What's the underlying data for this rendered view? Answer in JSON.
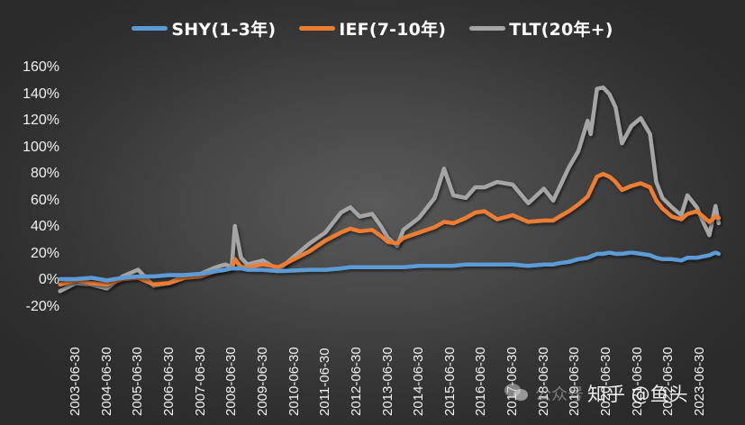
{
  "chart_data": {
    "type": "line",
    "title": "",
    "xlabel": "",
    "ylabel": "",
    "ylim": [
      -0.2,
      1.6
    ],
    "yticks": [
      "160%",
      "140%",
      "120%",
      "100%",
      "80%",
      "60%",
      "40%",
      "20%",
      "0%",
      "-20%"
    ],
    "ytick_values": [
      1.6,
      1.4,
      1.2,
      1.0,
      0.8,
      0.6,
      0.4,
      0.2,
      0.0,
      -0.2
    ],
    "xticks": [
      "2003-06-30",
      "2004-06-30",
      "2005-06-30",
      "2006-06-30",
      "2007-06-30",
      "2008-06-30",
      "2009-06-30",
      "2010-06-30",
      "2011-06-30",
      "2012-06-30",
      "2013-06-30",
      "2014-06-30",
      "2015-06-30",
      "2016-06-30",
      "2017-06-30",
      "2018-06-30",
      "2019-06-30",
      "2020-06-30",
      "2021-06-30",
      "2022-06-30",
      "2023-06-30"
    ],
    "legend_position": "top",
    "grid": false,
    "x": [
      2003.0,
      2003.5,
      2004.0,
      2004.5,
      2005.0,
      2005.5,
      2006.0,
      2006.5,
      2007.0,
      2007.5,
      2008.0,
      2008.3,
      2008.5,
      2008.6,
      2008.8,
      2009.0,
      2009.5,
      2010.0,
      2011.0,
      2011.5,
      2012.0,
      2012.3,
      2012.6,
      2013.0,
      2013.3,
      2013.5,
      2013.8,
      2014.0,
      2014.5,
      2015.0,
      2015.3,
      2015.6,
      2016.0,
      2016.3,
      2016.6,
      2017.0,
      2017.5,
      2018.0,
      2018.5,
      2018.8,
      2019.0,
      2019.3,
      2019.6,
      2019.9,
      2020.0,
      2020.2,
      2020.4,
      2020.6,
      2020.8,
      2021.0,
      2021.3,
      2021.6,
      2021.9,
      2022.1,
      2022.3,
      2022.6,
      2022.9,
      2023.1,
      2023.4,
      2023.6,
      2023.8,
      2024.0,
      2024.1
    ],
    "series": [
      {
        "name": "SHY(1-3年)",
        "color": "#5b9bd5",
        "values": [
          0.01,
          0.01,
          0.02,
          0.0,
          0.02,
          0.03,
          0.03,
          0.04,
          0.04,
          0.05,
          0.07,
          0.08,
          0.09,
          0.09,
          0.09,
          0.08,
          0.08,
          0.07,
          0.08,
          0.08,
          0.09,
          0.1,
          0.1,
          0.1,
          0.1,
          0.1,
          0.1,
          0.1,
          0.11,
          0.11,
          0.11,
          0.11,
          0.12,
          0.12,
          0.12,
          0.12,
          0.12,
          0.11,
          0.12,
          0.12,
          0.13,
          0.14,
          0.16,
          0.17,
          0.18,
          0.2,
          0.2,
          0.21,
          0.2,
          0.2,
          0.21,
          0.2,
          0.19,
          0.17,
          0.16,
          0.16,
          0.15,
          0.17,
          0.17,
          0.18,
          0.19,
          0.21,
          0.2
        ]
      },
      {
        "name": "IEF(7-10年)",
        "color": "#ed7d31",
        "values": [
          -0.03,
          0.0,
          -0.02,
          -0.03,
          0.01,
          0.02,
          -0.03,
          -0.02,
          0.02,
          0.03,
          0.07,
          0.08,
          0.09,
          0.16,
          0.1,
          0.1,
          0.12,
          0.1,
          0.22,
          0.3,
          0.36,
          0.39,
          0.37,
          0.38,
          0.33,
          0.29,
          0.28,
          0.32,
          0.36,
          0.4,
          0.44,
          0.43,
          0.47,
          0.51,
          0.52,
          0.46,
          0.49,
          0.44,
          0.45,
          0.45,
          0.48,
          0.52,
          0.57,
          0.63,
          0.68,
          0.78,
          0.8,
          0.78,
          0.74,
          0.68,
          0.71,
          0.73,
          0.7,
          0.6,
          0.54,
          0.48,
          0.46,
          0.5,
          0.52,
          0.48,
          0.44,
          0.48,
          0.47
        ]
      },
      {
        "name": "TLT(20年+)",
        "color": "#a5a5a5",
        "values": [
          -0.08,
          -0.02,
          -0.03,
          -0.06,
          0.03,
          0.08,
          -0.04,
          -0.02,
          0.04,
          0.05,
          0.1,
          0.12,
          0.1,
          0.41,
          0.17,
          0.12,
          0.15,
          0.08,
          0.28,
          0.36,
          0.51,
          0.55,
          0.48,
          0.5,
          0.4,
          0.32,
          0.26,
          0.38,
          0.47,
          0.62,
          0.84,
          0.64,
          0.62,
          0.7,
          0.7,
          0.74,
          0.72,
          0.58,
          0.69,
          0.6,
          0.7,
          0.85,
          0.97,
          1.2,
          1.1,
          1.44,
          1.45,
          1.4,
          1.3,
          1.03,
          1.16,
          1.22,
          1.1,
          0.74,
          0.62,
          0.55,
          0.49,
          0.64,
          0.55,
          0.44,
          0.34,
          0.56,
          0.43
        ]
      }
    ]
  },
  "legend": {
    "items": [
      {
        "label": "SHY(1-3年)",
        "color": "#5b9bd5"
      },
      {
        "label": "IEF(7-10年)",
        "color": "#ed7d31"
      },
      {
        "label": "TLT(20年+)",
        "color": "#a5a5a5"
      }
    ]
  },
  "watermark": {
    "wechat_label": "公众号",
    "main_label": "知乎 @鱼头"
  }
}
